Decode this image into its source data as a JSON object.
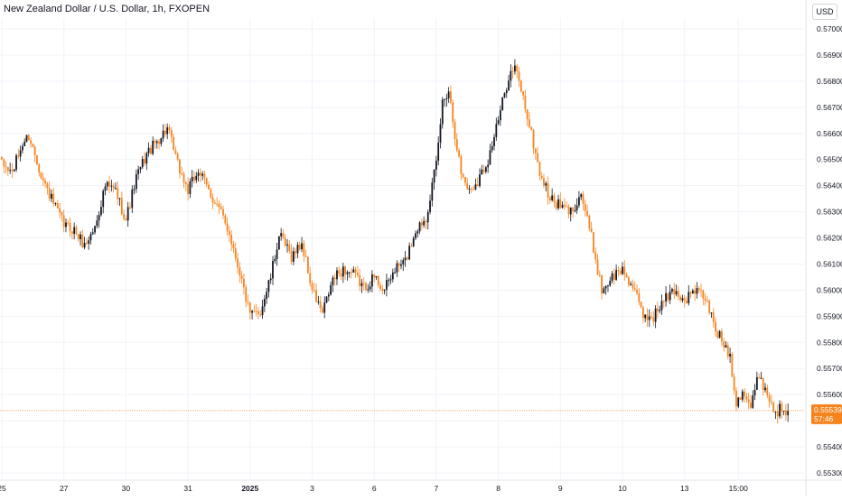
{
  "header": {
    "symbol_title": "New Zealand Dollar / U.S. Dollar, 1h, FXOPEN",
    "currency_label": "USD"
  },
  "price_badge": {
    "price": "0.55539",
    "countdown": "57:46"
  },
  "colors": {
    "up": "#131722",
    "down": "#f5841f",
    "grid": "#f0f3fa",
    "price_line": "#f5841f",
    "axis_text": "#131722"
  },
  "chart_data": {
    "type": "candlestick",
    "title": "New Zealand Dollar / U.S. Dollar, 1h, FXOPEN",
    "y_ticks": [
      "0.57000",
      "0.56900",
      "0.56800",
      "0.56700",
      "0.56600",
      "0.56500",
      "0.56400",
      "0.56300",
      "0.56200",
      "0.56100",
      "0.56000",
      "0.55900",
      "0.55800",
      "0.55700",
      "0.55600",
      "0.55500",
      "0.55400",
      "0.55300"
    ],
    "ylim": [
      0.5527,
      0.5711
    ],
    "x_ticks": [
      "25",
      "27",
      "30",
      "31",
      "2025",
      "3",
      "6",
      "7",
      "8",
      "9",
      "10",
      "13",
      "15:00"
    ],
    "x_tick_bars": [
      0,
      30,
      60,
      90,
      120,
      150,
      180,
      210,
      240,
      270,
      300,
      330,
      356
    ],
    "grid": true,
    "last_price": 0.55539,
    "waypoints": [
      [
        0,
        0.5648
      ],
      [
        5,
        0.5645
      ],
      [
        10,
        0.5656
      ],
      [
        13,
        0.5659
      ],
      [
        16,
        0.5652
      ],
      [
        20,
        0.5642
      ],
      [
        25,
        0.5633
      ],
      [
        30,
        0.5625
      ],
      [
        35,
        0.5623
      ],
      [
        40,
        0.5617
      ],
      [
        45,
        0.5624
      ],
      [
        50,
        0.564
      ],
      [
        55,
        0.5638
      ],
      [
        60,
        0.5627
      ],
      [
        65,
        0.5643
      ],
      [
        70,
        0.5652
      ],
      [
        75,
        0.5657
      ],
      [
        80,
        0.5662
      ],
      [
        85,
        0.5648
      ],
      [
        90,
        0.5638
      ],
      [
        95,
        0.5646
      ],
      [
        100,
        0.5638
      ],
      [
        105,
        0.5631
      ],
      [
        110,
        0.5622
      ],
      [
        115,
        0.5607
      ],
      [
        120,
        0.559
      ],
      [
        125,
        0.5592
      ],
      [
        130,
        0.5605
      ],
      [
        134,
        0.5621
      ],
      [
        140,
        0.5613
      ],
      [
        145,
        0.5618
      ],
      [
        150,
        0.56
      ],
      [
        155,
        0.5591
      ],
      [
        160,
        0.5604
      ],
      [
        165,
        0.5608
      ],
      [
        170,
        0.5606
      ],
      [
        175,
        0.5601
      ],
      [
        180,
        0.5605
      ],
      [
        185,
        0.56
      ],
      [
        190,
        0.5608
      ],
      [
        195,
        0.5611
      ],
      [
        200,
        0.5623
      ],
      [
        205,
        0.5628
      ],
      [
        210,
        0.5648
      ],
      [
        213,
        0.5672
      ],
      [
        216,
        0.5677
      ],
      [
        219,
        0.566
      ],
      [
        222,
        0.5645
      ],
      [
        226,
        0.5638
      ],
      [
        230,
        0.5642
      ],
      [
        235,
        0.565
      ],
      [
        240,
        0.5665
      ],
      [
        245,
        0.5682
      ],
      [
        248,
        0.5685
      ],
      [
        251,
        0.5677
      ],
      [
        255,
        0.5663
      ],
      [
        260,
        0.5645
      ],
      [
        265,
        0.5635
      ],
      [
        270,
        0.5632
      ],
      [
        275,
        0.563
      ],
      [
        280,
        0.5637
      ],
      [
        285,
        0.562
      ],
      [
        290,
        0.56
      ],
      [
        295,
        0.5605
      ],
      [
        300,
        0.5608
      ],
      [
        305,
        0.5601
      ],
      [
        310,
        0.559
      ],
      [
        315,
        0.559
      ],
      [
        320,
        0.5596
      ],
      [
        325,
        0.56
      ],
      [
        330,
        0.5596
      ],
      [
        335,
        0.56
      ],
      [
        340,
        0.5597
      ],
      [
        345,
        0.5585
      ],
      [
        350,
        0.5578
      ],
      [
        352,
        0.5575
      ],
      [
        355,
        0.5557
      ],
      [
        358,
        0.5562
      ],
      [
        362,
        0.5555
      ],
      [
        366,
        0.5568
      ],
      [
        370,
        0.556
      ],
      [
        374,
        0.5553
      ],
      [
        377,
        0.5555
      ],
      [
        380,
        0.5554
      ]
    ]
  }
}
